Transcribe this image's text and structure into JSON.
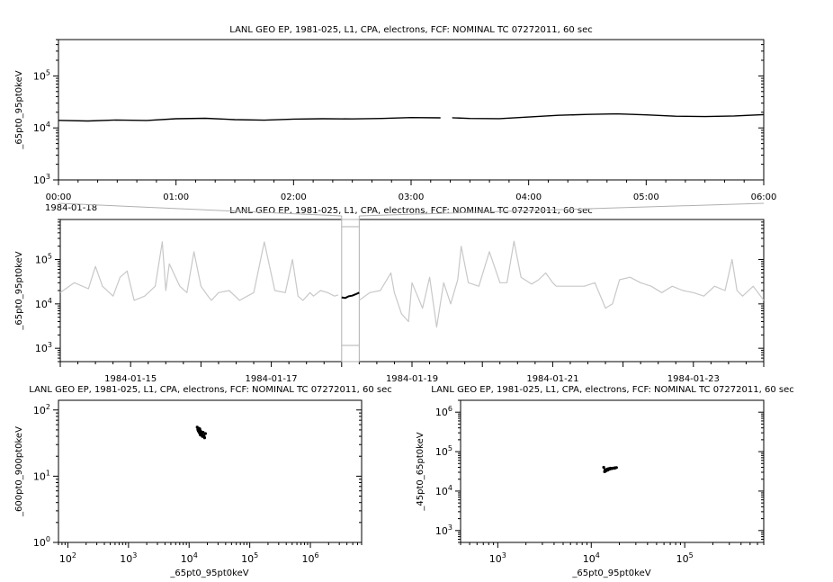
{
  "chart_data": [
    {
      "id": "top",
      "type": "line",
      "title": "LANL GEO EP, 1981-025, L1, CPA, electrons, FCF: NOMINAL TC 07272011, 60 sec",
      "ylabel": "_65pt0_95pt0keV",
      "xlabel": "",
      "x_date": "1984-01-18",
      "x_range_hours": [
        0,
        6
      ],
      "x_tick_labels": [
        "00:00",
        "01:00",
        "02:00",
        "03:00",
        "04:00",
        "05:00",
        "06:00"
      ],
      "y_scale": "log",
      "ylim": [
        1000,
        500000
      ],
      "y_tick_labels": [
        {
          "m": "10",
          "e": "3"
        },
        {
          "m": "10",
          "e": "4"
        },
        {
          "m": "10",
          "e": "5"
        }
      ],
      "series": [
        {
          "color": "#000000",
          "x_hours": [
            0,
            0.25,
            0.5,
            0.75,
            1.0,
            1.25,
            1.5,
            1.75,
            2.0,
            2.25,
            2.5,
            2.75,
            3.0,
            3.25,
            3.3,
            3.35,
            3.5,
            3.75,
            4.0,
            4.25,
            4.5,
            4.75,
            5.0,
            5.25,
            5.5,
            5.75,
            6.0
          ],
          "values": [
            14000,
            13600,
            14200,
            13900,
            15000,
            15300,
            14400,
            14100,
            14800,
            15000,
            14900,
            15200,
            15800,
            15600,
            null,
            15700,
            15200,
            15100,
            16200,
            17500,
            18200,
            18600,
            17800,
            16800,
            16500,
            17000,
            18000
          ]
        }
      ]
    },
    {
      "id": "overview",
      "type": "line",
      "title": "LANL GEO EP, 1981-025, L1, CPA, electrons, FCF: NOMINAL TC 07272011, 60 sec",
      "ylabel": "_65pt0_95pt0keV",
      "xlabel": "",
      "x_range_days": [
        "1984-01-14",
        "1984-01-24"
      ],
      "x_tick_labels": [
        "1984-01-15",
        "1984-01-17",
        "1984-01-19",
        "1984-01-21",
        "1984-01-23"
      ],
      "y_scale": "log",
      "ylim": [
        500,
        800000
      ],
      "y_tick_labels": [
        {
          "m": "10",
          "e": "3"
        },
        {
          "m": "10",
          "e": "4"
        },
        {
          "m": "10",
          "e": "5"
        }
      ],
      "highlight_date_label": "1984-01-18",
      "series": [
        {
          "color": "#c8c8c8",
          "x_days": [
            0.0,
            0.2,
            0.4,
            0.5,
            0.6,
            0.75,
            0.85,
            0.95,
            1.05,
            1.2,
            1.35,
            1.45,
            1.5,
            1.55,
            1.7,
            1.8,
            1.9,
            2.0,
            2.1,
            2.15,
            2.25,
            2.4,
            2.55,
            2.75,
            2.9,
            3.05,
            3.2,
            3.3,
            3.38,
            3.45,
            3.55,
            3.6,
            3.7,
            3.8,
            3.9,
            3.95,
            4.1,
            4.25,
            4.4,
            4.55,
            4.7,
            4.75,
            4.85,
            4.95,
            5.0,
            5.15,
            5.25,
            5.35,
            5.45,
            5.55,
            5.65,
            5.7,
            5.8,
            5.95,
            6.1,
            6.25,
            6.35,
            6.45,
            6.55,
            6.7,
            6.8,
            6.9,
            7.0,
            7.05,
            7.15,
            7.3,
            7.45,
            7.6,
            7.75,
            7.85,
            7.95,
            8.1,
            8.25,
            8.4,
            8.55,
            8.7,
            8.85,
            9.0,
            9.15,
            9.3,
            9.45,
            9.55,
            9.62,
            9.7,
            9.85,
            10.0
          ],
          "values": [
            18000,
            30000,
            22000,
            70000,
            25000,
            15000,
            40000,
            55000,
            12000,
            15000,
            25000,
            250000,
            20000,
            80000,
            25000,
            18000,
            150000,
            25000,
            15000,
            12000,
            18000,
            20000,
            12000,
            18000,
            250000,
            20000,
            18000,
            100000,
            15000,
            12000,
            18000,
            15000,
            20000,
            18000,
            15000,
            16000,
            null,
            12000,
            18000,
            20000,
            50000,
            18000,
            6000,
            4000,
            30000,
            8000,
            40000,
            3000,
            30000,
            10000,
            35000,
            200000,
            30000,
            25000,
            150000,
            30000,
            30000,
            260000,
            40000,
            28000,
            35000,
            50000,
            30000,
            25000,
            25000,
            25000,
            25000,
            30000,
            8000,
            10000,
            35000,
            40000,
            30000,
            25000,
            18000,
            25000,
            20000,
            18000,
            15000,
            25000,
            20000,
            100000,
            20000,
            15000,
            25000,
            12000
          ]
        },
        {
          "color": "#000000",
          "x_days": [
            4.0,
            4.05,
            4.1,
            4.15,
            4.2,
            4.25
          ],
          "values": [
            14000,
            13600,
            14800,
            15300,
            16500,
            18000
          ]
        }
      ]
    },
    {
      "id": "scatter-left",
      "type": "scatter",
      "title": "LANL GEO EP, 1981-025, L1, CPA, electrons, FCF: NOMINAL TC 07272011, 60 sec",
      "xlabel": "_65pt0_95pt0keV",
      "ylabel": "_600pt0_900pt0keV",
      "x_scale": "log",
      "y_scale": "log",
      "xlim": [
        70,
        7000000
      ],
      "ylim": [
        1,
        140
      ],
      "x_tick_labels": [
        {
          "m": "10",
          "e": "2"
        },
        {
          "m": "10",
          "e": "3"
        },
        {
          "m": "10",
          "e": "4"
        },
        {
          "m": "10",
          "e": "5"
        },
        {
          "m": "10",
          "e": "6"
        }
      ],
      "y_tick_labels": [
        {
          "m": "10",
          "e": "0"
        },
        {
          "m": "10",
          "e": "1"
        },
        {
          "m": "10",
          "e": "2"
        }
      ],
      "series": [
        {
          "color": "#000000",
          "x": [
            13600,
            14000,
            14200,
            14800,
            15000,
            15300,
            15600,
            16000,
            16500,
            17000,
            17500,
            18000,
            18600,
            14400,
            15200,
            16200,
            17800,
            13900,
            15800,
            16800
          ],
          "y": [
            55,
            50,
            48,
            45,
            52,
            42,
            47,
            44,
            40,
            46,
            41,
            38,
            44,
            53,
            49,
            43,
            39,
            51,
            47,
            42
          ]
        }
      ]
    },
    {
      "id": "scatter-right",
      "type": "scatter",
      "title": "LANL GEO EP, 1981-025, L1, CPA, electrons, FCF: NOMINAL TC 07272011, 60 sec",
      "xlabel": "_65pt0_95pt0keV",
      "ylabel": "_45pt0_65pt0keV",
      "x_scale": "log",
      "y_scale": "log",
      "xlim": [
        400,
        700000
      ],
      "ylim": [
        500,
        2000000
      ],
      "x_tick_labels": [
        {
          "m": "10",
          "e": "3"
        },
        {
          "m": "10",
          "e": "4"
        },
        {
          "m": "10",
          "e": "5"
        }
      ],
      "y_tick_labels": [
        {
          "m": "10",
          "e": "3"
        },
        {
          "m": "10",
          "e": "4"
        },
        {
          "m": "10",
          "e": "5"
        },
        {
          "m": "10",
          "e": "6"
        }
      ],
      "series": [
        {
          "color": "#000000",
          "x": [
            13600,
            14000,
            14200,
            14800,
            15000,
            15300,
            15600,
            16000,
            16500,
            17000,
            17500,
            18000,
            18600,
            14400,
            15200,
            16200,
            17800,
            13900,
            15800,
            16800
          ],
          "y": [
            40000,
            35000,
            32000,
            36000,
            34000,
            37000,
            36000,
            38000,
            37500,
            38000,
            38500,
            39000,
            39500,
            33000,
            35500,
            37000,
            38000,
            31000,
            36500,
            37500
          ]
        }
      ]
    }
  ]
}
